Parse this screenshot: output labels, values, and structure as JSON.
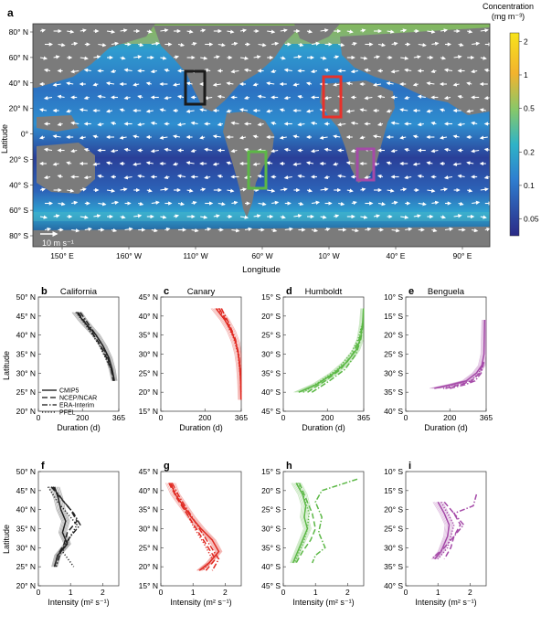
{
  "figure": {
    "map": {
      "panel_label": "a",
      "colorbar_title": "Concentration",
      "colorbar_units": "(mg m⁻³)",
      "colorbar_ticks": [
        "2",
        "1",
        "0.5",
        "0.2",
        "0.1",
        "0.05"
      ],
      "y_label": "Latitude",
      "x_label": "Longitude",
      "lat_ticks": [
        "80° N",
        "60° N",
        "40° N",
        "20° N",
        "0°",
        "20° S",
        "40° S",
        "60° S",
        "80° S"
      ],
      "lon_ticks": [
        "150° E",
        "160° W",
        "110° W",
        "60° W",
        "10° W",
        "40° E",
        "90° E"
      ],
      "wind_scale_label": "10 m s⁻¹",
      "boxes": [
        {
          "name": "California",
          "color": "#1a1a1a"
        },
        {
          "name": "Canary",
          "color": "#e8312a"
        },
        {
          "name": "Humboldt",
          "color": "#5cb846"
        },
        {
          "name": "Benguela",
          "color": "#a54aa8"
        }
      ],
      "colors": {
        "land": "#7b7b7b",
        "low": "#2a2f86",
        "mid": "#2f8fd0",
        "high": "#f5d531"
      }
    },
    "legend": [
      {
        "label": "CMIP5",
        "style": "solid"
      },
      {
        "label": "NCEP/NCAR",
        "style": "dashed"
      },
      {
        "label": "ERA-Interim",
        "style": "dashdot"
      },
      {
        "label": "PFEL",
        "style": "dotted"
      }
    ],
    "duration_row": {
      "y_label": "Latitude",
      "x_label": "Duration (d)",
      "x_ticks": [
        "0",
        "200",
        "365"
      ]
    },
    "intensity_row": {
      "y_label": "Latitude",
      "x_label": "Intensity (m² s⁻¹)",
      "x_ticks": [
        "0",
        "1",
        "2"
      ]
    },
    "panels": [
      {
        "label": "b",
        "title": "California",
        "ticks": [
          "50° N",
          "45° N",
          "40° N",
          "35° N",
          "30° N",
          "25° N",
          "20° N"
        ]
      },
      {
        "label": "c",
        "title": "Canary",
        "ticks": [
          "45° N",
          "40° N",
          "35° N",
          "30° N",
          "25° N",
          "20° N",
          "15° N"
        ]
      },
      {
        "label": "d",
        "title": "Humboldt",
        "ticks": [
          "15° S",
          "20° S",
          "25° S",
          "30° S",
          "35° S",
          "40° S",
          "45° S"
        ]
      },
      {
        "label": "e",
        "title": "Benguela",
        "ticks": [
          "10° S",
          "15° S",
          "20° S",
          "25° S",
          "30° S",
          "35° S",
          "40° S"
        ]
      },
      {
        "label": "f",
        "title": "",
        "ticks": [
          "50° N",
          "45° N",
          "40° N",
          "35° N",
          "30° N",
          "25° N",
          "20° N"
        ]
      },
      {
        "label": "g",
        "title": "",
        "ticks": [
          "45° N",
          "40° N",
          "35° N",
          "30° N",
          "25° N",
          "20° N",
          "15° N"
        ]
      },
      {
        "label": "h",
        "title": "",
        "ticks": [
          "15° S",
          "20° S",
          "25° S",
          "30° S",
          "35° S",
          "40° S",
          "45° S"
        ]
      },
      {
        "label": "i",
        "title": "",
        "ticks": [
          "10° S",
          "15° S",
          "20° S",
          "25° S",
          "30° S",
          "35° S",
          "40° S"
        ]
      }
    ]
  },
  "chart_data": [
    {
      "type": "heatmap",
      "title": "",
      "xlabel": "Longitude",
      "ylabel": "Latitude",
      "colorbar": "Concentration (mg m⁻³)",
      "colorbar_range": [
        0.03,
        2.5
      ],
      "log_scale": true,
      "regions": [
        "California",
        "Canary",
        "Humboldt",
        "Benguela"
      ]
    },
    {
      "type": "line",
      "title": "California",
      "xlabel": "Duration (d)",
      "ylabel": "Latitude",
      "xlim": [
        0,
        365
      ],
      "ylim": [
        20,
        50
      ],
      "color": "#222222",
      "series": [
        {
          "name": "CMIP5",
          "style": "solid",
          "x": [
            175,
            200,
            230,
            262,
            295,
            320,
            335,
            345
          ],
          "y": [
            46,
            44,
            42,
            40,
            37,
            34,
            31,
            28
          ]
        },
        {
          "name": "NCEP/NCAR",
          "style": "dashed",
          "x": [
            180,
            210,
            245,
            280,
            310,
            330,
            340
          ],
          "y": [
            46,
            43.5,
            40.5,
            37.5,
            34,
            31,
            28
          ]
        },
        {
          "name": "ERA-Interim",
          "style": "dashdot",
          "x": [
            190,
            220,
            255,
            290,
            315,
            332,
            342
          ],
          "y": [
            46,
            43.5,
            40.5,
            37.5,
            34,
            31,
            28
          ]
        },
        {
          "name": "PFEL",
          "style": "dotted",
          "x": [
            170,
            205,
            240,
            275,
            305,
            330,
            345
          ],
          "y": [
            46,
            43.5,
            40.5,
            37.5,
            34,
            31,
            28
          ]
        }
      ]
    },
    {
      "type": "line",
      "title": "Canary",
      "xlabel": "Duration (d)",
      "ylabel": "Latitude",
      "xlim": [
        0,
        365
      ],
      "ylim": [
        15,
        45
      ],
      "color": "#e02a22",
      "series": [
        {
          "name": "CMIP5",
          "style": "solid",
          "x": [
            250,
            290,
            320,
            340,
            352,
            358,
            362,
            364
          ],
          "y": [
            42,
            39,
            36,
            33,
            30,
            27,
            23,
            18
          ]
        },
        {
          "name": "NCEP/NCAR",
          "style": "dashed",
          "x": [
            265,
            305,
            335,
            352,
            360,
            364
          ],
          "y": [
            42,
            38,
            34,
            30,
            25,
            20
          ]
        },
        {
          "name": "ERA-Interim",
          "style": "dashdot",
          "x": [
            275,
            310,
            338,
            354,
            362,
            364
          ],
          "y": [
            42,
            38,
            34,
            30,
            25,
            20
          ]
        },
        {
          "name": "PFEL",
          "style": "dotted",
          "x": [
            260,
            300,
            332,
            350,
            360,
            364
          ],
          "y": [
            42,
            38,
            34,
            30,
            25,
            20
          ]
        }
      ]
    },
    {
      "type": "line",
      "title": "Humboldt",
      "xlabel": "Duration (d)",
      "ylabel": "Latitude",
      "xlim": [
        0,
        365
      ],
      "ylim": [
        -45,
        -15
      ],
      "color": "#5cb846",
      "series": [
        {
          "name": "CMIP5",
          "style": "solid",
          "x": [
            70,
            150,
            230,
            290,
            330,
            350,
            360,
            364
          ],
          "y": [
            -40,
            -38,
            -35,
            -32,
            -29,
            -26,
            -22,
            -18
          ]
        },
        {
          "name": "NCEP/NCAR",
          "style": "dashed",
          "x": [
            110,
            190,
            260,
            315,
            345,
            360
          ],
          "y": [
            -40,
            -37,
            -34,
            -30,
            -26,
            -22
          ]
        },
        {
          "name": "ERA-Interim",
          "style": "dashdot",
          "x": [
            130,
            210,
            280,
            330,
            352,
            362
          ],
          "y": [
            -40,
            -37,
            -34,
            -30,
            -26,
            -22
          ]
        },
        {
          "name": "PFEL",
          "style": "dotted",
          "x": [
            90,
            170,
            245,
            305,
            340,
            358
          ],
          "y": [
            -40,
            -37,
            -34,
            -30,
            -26,
            -22
          ]
        }
      ]
    },
    {
      "type": "line",
      "title": "Benguela",
      "xlabel": "Duration (d)",
      "ylabel": "Latitude",
      "xlim": [
        0,
        365
      ],
      "ylim": [
        -40,
        -10
      ],
      "color": "#a54aa8",
      "series": [
        {
          "name": "CMIP5",
          "style": "solid",
          "x": [
            130,
            210,
            275,
            320,
            345,
            355,
            358
          ],
          "y": [
            -34,
            -33,
            -32,
            -30,
            -28,
            -25,
            -16
          ]
        },
        {
          "name": "NCEP/NCAR",
          "style": "dashed",
          "x": [
            180,
            250,
            300,
            335,
            352
          ],
          "y": [
            -34,
            -33,
            -32,
            -30,
            -27
          ]
        },
        {
          "name": "ERA-Interim",
          "style": "dashdot",
          "x": [
            200,
            270,
            315,
            342,
            355
          ],
          "y": [
            -34,
            -33,
            -32,
            -30,
            -27
          ]
        },
        {
          "name": "PFEL",
          "style": "dotted",
          "x": [
            170,
            240,
            295,
            332,
            350
          ],
          "y": [
            -34,
            -33,
            -32,
            -30,
            -27
          ]
        }
      ]
    },
    {
      "type": "line",
      "title": "",
      "xlabel": "Intensity (m² s⁻¹)",
      "ylabel": "Latitude",
      "xlim": [
        0,
        2.5
      ],
      "ylim": [
        20,
        50
      ],
      "color": "#222222",
      "series": [
        {
          "name": "CMIP5",
          "style": "solid",
          "x": [
            0.5,
            0.62,
            0.7,
            0.85,
            0.75,
            0.9,
            0.6,
            0.5
          ],
          "y": [
            46,
            43,
            40,
            37,
            34,
            31,
            28,
            25
          ]
        },
        {
          "name": "NCEP/NCAR",
          "style": "dashed",
          "x": [
            0.4,
            0.7,
            1.0,
            1.2,
            0.9,
            0.8,
            0.6,
            0.5
          ],
          "y": [
            46,
            43,
            40,
            37,
            34,
            31,
            28,
            25
          ]
        },
        {
          "name": "ERA-Interim",
          "style": "dashdot",
          "x": [
            0.45,
            0.8,
            1.1,
            1.3,
            1.0,
            0.7,
            0.55
          ],
          "y": [
            46,
            42,
            39,
            36,
            33,
            29,
            25
          ]
        },
        {
          "name": "PFEL",
          "style": "dotted",
          "x": [
            0.3,
            0.6,
            0.9,
            1.2,
            1.0,
            0.75,
            1.1
          ],
          "y": [
            46,
            42,
            39,
            36,
            33,
            29,
            25
          ]
        }
      ]
    },
    {
      "type": "line",
      "title": "",
      "xlabel": "Intensity (m² s⁻¹)",
      "ylabel": "Latitude",
      "xlim": [
        0,
        2.5
      ],
      "ylim": [
        15,
        45
      ],
      "color": "#e02a22",
      "series": [
        {
          "name": "CMIP5",
          "style": "solid",
          "x": [
            0.3,
            0.45,
            0.7,
            0.95,
            1.25,
            1.6,
            1.8,
            1.5,
            1.2
          ],
          "y": [
            42,
            39,
            36,
            33,
            30,
            27,
            24,
            21,
            19
          ]
        },
        {
          "name": "NCEP/NCAR",
          "style": "dashed",
          "x": [
            0.25,
            0.5,
            0.8,
            1.1,
            1.4,
            1.7,
            1.4
          ],
          "y": [
            42,
            38,
            34,
            30,
            26,
            22,
            19
          ]
        },
        {
          "name": "ERA-Interim",
          "style": "dashdot",
          "x": [
            0.35,
            0.6,
            0.9,
            1.2,
            1.5,
            1.8,
            1.6
          ],
          "y": [
            42,
            38,
            34,
            30,
            26,
            22,
            19
          ]
        },
        {
          "name": "PFEL",
          "style": "dotted",
          "x": [
            0.3,
            0.55,
            0.8,
            1.05,
            1.35,
            1.6,
            1.3
          ],
          "y": [
            42,
            38,
            34,
            30,
            26,
            22,
            19
          ]
        }
      ]
    },
    {
      "type": "line",
      "title": "",
      "xlabel": "Intensity (m² s⁻¹)",
      "ylabel": "Latitude",
      "xlim": [
        0,
        2.5
      ],
      "ylim": [
        -45,
        -15
      ],
      "color": "#5cb846",
      "series": [
        {
          "name": "CMIP5",
          "style": "solid",
          "x": [
            0.4,
            0.6,
            0.7,
            0.65,
            0.75,
            0.6,
            0.45,
            0.3
          ],
          "y": [
            -18,
            -21,
            -24,
            -27,
            -30,
            -33,
            -36,
            -39
          ]
        },
        {
          "name": "NCEP/NCAR",
          "style": "dashed",
          "x": [
            0.5,
            0.7,
            0.9,
            1.0,
            0.85,
            0.6,
            0.4
          ],
          "y": [
            -18,
            -22,
            -26,
            -30,
            -33,
            -36,
            -39
          ]
        },
        {
          "name": "ERA-Interim",
          "style": "dashdot",
          "x": [
            2.3,
            1.2,
            1.0,
            1.2,
            1.1,
            1.3,
            1.0,
            0.9
          ],
          "y": [
            -17,
            -20,
            -23,
            -27,
            -31,
            -35,
            -37,
            -39
          ]
        },
        {
          "name": "PFEL",
          "style": "dotted",
          "x": [
            0.45,
            0.65,
            0.8,
            0.75,
            0.65,
            0.5,
            0.35
          ],
          "y": [
            -18,
            -22,
            -26,
            -30,
            -33,
            -36,
            -39
          ]
        }
      ]
    },
    {
      "type": "line",
      "title": "",
      "xlabel": "Intensity (m² s⁻¹)",
      "ylabel": "Latitude",
      "xlim": [
        0,
        2.5
      ],
      "ylim": [
        -40,
        -10
      ],
      "color": "#a54aa8",
      "series": [
        {
          "name": "CMIP5",
          "style": "solid",
          "x": [
            1.0,
            1.2,
            1.35,
            1.3,
            1.2,
            1.1,
            0.9
          ],
          "y": [
            -18,
            -21,
            -24,
            -27,
            -29,
            -31,
            -33
          ]
        },
        {
          "name": "NCEP/NCAR",
          "style": "dashed",
          "x": [
            1.2,
            1.5,
            1.7,
            1.5,
            1.4,
            1.2
          ],
          "y": [
            -18,
            -21,
            -24,
            -27,
            -30,
            -33
          ]
        },
        {
          "name": "ERA-Interim",
          "style": "dashdot",
          "x": [
            2.2,
            2.1,
            1.5,
            1.8,
            1.5,
            1.2,
            0.8
          ],
          "y": [
            -16,
            -19,
            -21,
            -24,
            -27,
            -30,
            -33
          ]
        },
        {
          "name": "PFEL",
          "style": "dotted",
          "x": [
            1.1,
            1.3,
            1.5,
            1.4,
            1.3,
            1.0
          ],
          "y": [
            -18,
            -21,
            -24,
            -27,
            -30,
            -33
          ]
        }
      ]
    }
  ]
}
